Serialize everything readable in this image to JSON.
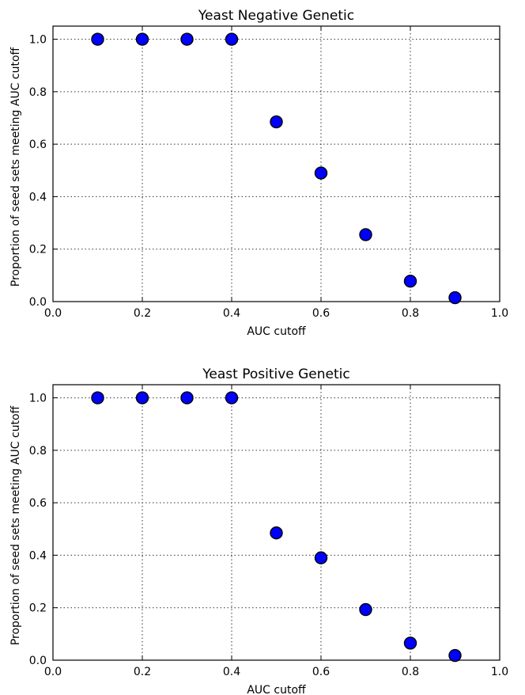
{
  "chart_data": [
    {
      "type": "scatter",
      "title": "Yeast Negative Genetic",
      "xlabel": "AUC cutoff",
      "ylabel": "Proportion of seed sets meeting AUC cutoff",
      "xlim": [
        0.0,
        1.0
      ],
      "ylim": [
        0.0,
        1.05
      ],
      "grid": true,
      "xticks": [
        "0.0",
        "0.2",
        "0.4",
        "0.6",
        "0.8",
        "1.0"
      ],
      "yticks": [
        "0.0",
        "0.2",
        "0.4",
        "0.6",
        "0.8",
        "1.0"
      ],
      "marker_color": "#0000ff",
      "x": [
        0.1,
        0.2,
        0.3,
        0.4,
        0.5,
        0.6,
        0.7,
        0.8,
        0.9
      ],
      "y": [
        1.0,
        1.0,
        1.0,
        1.0,
        0.685,
        0.49,
        0.255,
        0.078,
        0.015
      ]
    },
    {
      "type": "scatter",
      "title": "Yeast Positive Genetic",
      "xlabel": "AUC cutoff",
      "ylabel": "Proportion of seed sets meeting AUC cutoff",
      "xlim": [
        0.0,
        1.0
      ],
      "ylim": [
        0.0,
        1.05
      ],
      "grid": true,
      "xticks": [
        "0.0",
        "0.2",
        "0.4",
        "0.6",
        "0.8",
        "1.0"
      ],
      "yticks": [
        "0.0",
        "0.2",
        "0.4",
        "0.6",
        "0.8",
        "1.0"
      ],
      "marker_color": "#0000ff",
      "x": [
        0.1,
        0.2,
        0.3,
        0.4,
        0.5,
        0.6,
        0.7,
        0.8,
        0.9
      ],
      "y": [
        1.0,
        1.0,
        1.0,
        1.0,
        0.485,
        0.39,
        0.193,
        0.065,
        0.018
      ]
    }
  ]
}
